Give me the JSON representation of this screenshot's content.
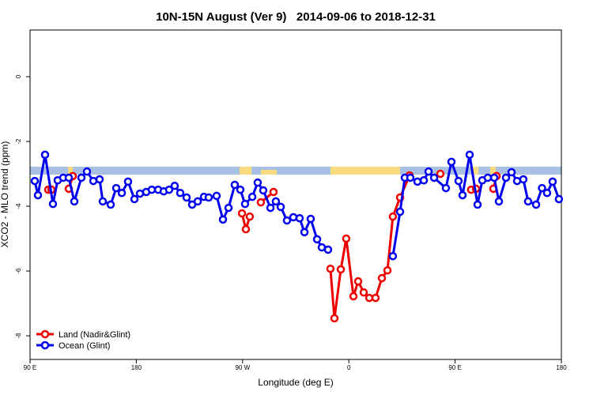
{
  "chart_data": {
    "type": "line",
    "title": "10N-15N August (Ver 9)   2014-09-06 to 2018-12-31",
    "x_label": "Longitude (deg E)",
    "y_label": "XCO2 - MLO trend (ppm)",
    "xlim": [
      90,
      540
    ],
    "ylim": [
      -8.73,
      1.44
    ],
    "xticks": [
      {
        "value": 90,
        "label": "90 E"
      },
      180,
      {
        "value": 270,
        "label": "90 W"
      },
      {
        "value": 360,
        "label": "0"
      },
      {
        "value": 450,
        "label": "90 E"
      },
      {
        "value": 540,
        "label": "180"
      }
    ],
    "yticks": [
      0,
      -2,
      -4,
      -6,
      -8
    ],
    "legend": "bottom-left",
    "series": [
      {
        "name": "Land (Nadir&Glint)",
        "color": "#ee0000",
        "x": [
          105.4,
          108.1,
          null,
          122.8,
          126.2,
          null,
          269.5,
          272.8,
          276.1,
          null,
          285.5,
          296.2,
          null,
          344.4,
          347.8,
          353.2,
          357.8,
          363.9,
          367.9,
          372.6,
          377.3,
          382.6,
          388.0,
          392.7,
          397.3,
          403.4,
          411.4,
          null,
          437.5,
          null,
          463.6,
          467.7,
          null,
          482.4,
          485.1
        ],
        "values": [
          -3.49,
          -3.49,
          null,
          -3.46,
          -3.07,
          null,
          -4.22,
          -4.71,
          -4.32,
          null,
          -3.88,
          -3.56,
          null,
          -5.93,
          -7.46,
          -5.95,
          -5.0,
          -6.78,
          -6.32,
          -6.66,
          -6.83,
          -6.83,
          -6.22,
          -5.98,
          -4.32,
          -3.73,
          -3.05,
          null,
          -3.0,
          null,
          -3.49,
          -3.46,
          null,
          -3.46,
          -3.07
        ]
      },
      {
        "name": "Ocean (Glint)",
        "color": "#0000ee",
        "x": [
          94.0,
          96.7,
          102.7,
          109.4,
          113.4,
          118.1,
          122.8,
          127.5,
          133.5,
          138.2,
          143.6,
          148.9,
          151.6,
          158.3,
          163.0,
          167.7,
          173.0,
          178.4,
          183.1,
          188.4,
          193.1,
          198.5,
          203.2,
          207.8,
          212.5,
          217.2,
          222.6,
          227.3,
          232.0,
          237.3,
          241.3,
          248.0,
          253.4,
          258.1,
          263.4,
          268.1,
          272.1,
          278.2,
          282.8,
          287.5,
          293.6,
          298.2,
          302.3,
          307.6,
          313.0,
          318.3,
          322.4,
          327.7,
          333.1,
          337.1,
          342.4,
          null,
          397.3,
          403.4,
          407.4,
          412.1,
          418.1,
          423.5,
          427.5,
          432.2,
          442.2,
          446.9,
          452.9,
          456.3,
          462.3,
          469.0,
          473.0,
          477.7,
          483.1,
          487.1,
          493.1,
          497.8,
          502.5,
          507.8,
          511.8,
          518.6,
          523.6,
          527.9,
          532.6,
          537.9
        ],
        "values": [
          -3.22,
          -3.66,
          -2.41,
          -3.93,
          -3.2,
          -3.12,
          -3.12,
          -3.85,
          -3.12,
          -2.93,
          -3.22,
          -3.17,
          -3.85,
          -3.95,
          -3.44,
          -3.59,
          -3.24,
          -3.78,
          -3.61,
          -3.56,
          -3.49,
          -3.49,
          -3.54,
          -3.49,
          -3.37,
          -3.59,
          -3.73,
          -3.95,
          -3.85,
          -3.71,
          -3.73,
          -3.68,
          -4.41,
          -4.05,
          -3.34,
          -3.49,
          -3.93,
          -3.71,
          -3.27,
          -3.51,
          -4.05,
          -3.85,
          -4.02,
          -4.44,
          -4.34,
          -4.37,
          -4.8,
          -4.39,
          -5.02,
          -5.27,
          -5.34,
          null,
          -5.54,
          -4.17,
          -3.12,
          -3.12,
          -3.24,
          -3.2,
          -2.93,
          -3.12,
          -3.44,
          -2.63,
          -3.22,
          -3.66,
          -2.41,
          -3.95,
          -3.2,
          -3.12,
          -3.12,
          -3.85,
          -3.12,
          -2.95,
          -3.22,
          -3.17,
          -3.85,
          -3.95,
          -3.44,
          -3.59,
          -3.24,
          -3.78
        ]
      }
    ]
  }
}
